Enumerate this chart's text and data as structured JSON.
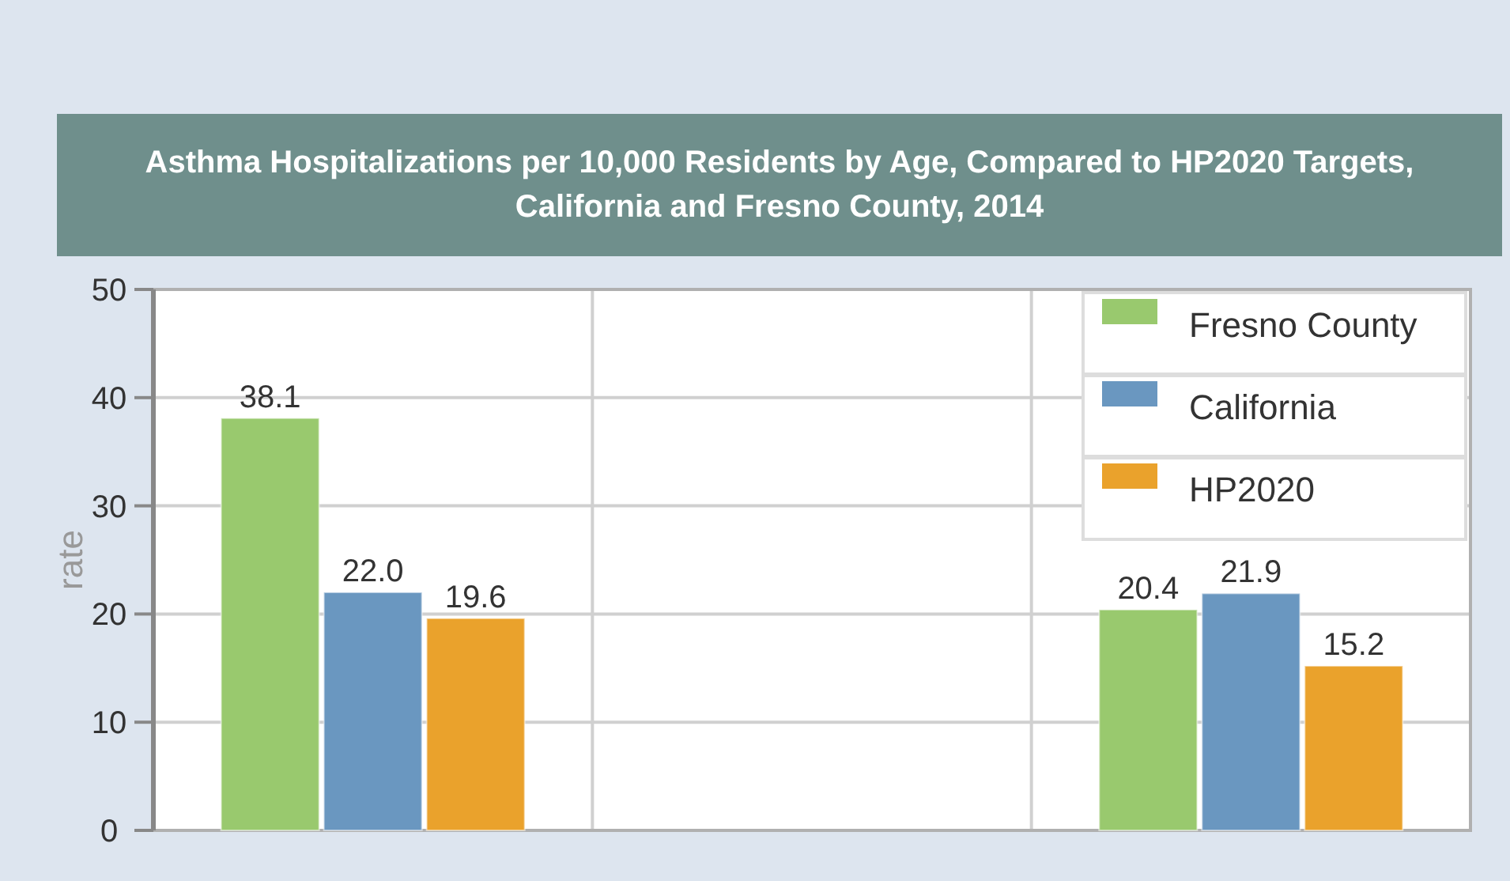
{
  "chart_data": {
    "type": "bar",
    "title": "Asthma Hospitalizations per 10,000 Residents by Age, Compared to HP2020 Targets, California and Fresno County, 2014",
    "ylabel": "rate",
    "categories": [
      null,
      null,
      null
    ],
    "series": [
      {
        "name": "Fresno County",
        "color": "#99c96e",
        "values": [
          38.1,
          null,
          20.4
        ],
        "value_labels": [
          "38.1",
          null,
          "20.4"
        ]
      },
      {
        "name": "California",
        "color": "#6a97c0",
        "values": [
          22.0,
          null,
          21.9
        ],
        "value_labels": [
          "22.0",
          null,
          "21.9"
        ]
      },
      {
        "name": "HP2020",
        "color": "#eaa22c",
        "values": [
          19.6,
          null,
          15.2
        ],
        "value_labels": [
          "19.6",
          null,
          "15.2"
        ]
      }
    ],
    "ylim": [
      0,
      50
    ],
    "yticks": [
      0,
      10,
      20,
      30,
      40,
      50
    ],
    "grid": true,
    "legend": "top right"
  }
}
